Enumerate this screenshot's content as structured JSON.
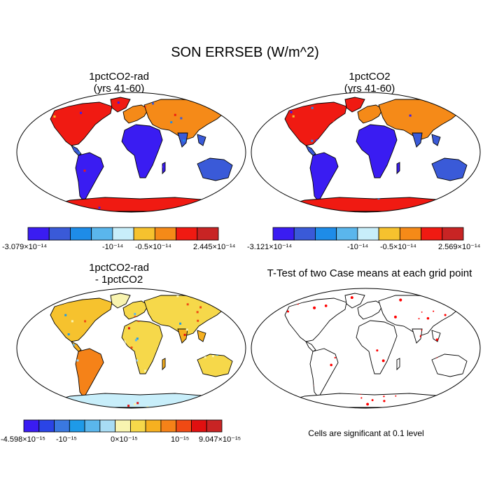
{
  "title": "SON ERRSEB (W/m^2)",
  "panels": [
    {
      "title_line1": "1pctCO2-rad",
      "title_line2": "(yrs 41-60)",
      "colorbar": {
        "colors": [
          "#3a1cf2",
          "#3a5ad8",
          "#1e8ce8",
          "#5ab6ec",
          "#c8eefa",
          "#f6c22e",
          "#f58a18",
          "#f01a12",
          "#c82424"
        ],
        "labels": [
          "-3.079×10⁻¹⁴",
          "-10⁻¹⁴",
          "-0.5×10⁻¹⁴",
          "2.445×10⁻¹⁴"
        ]
      }
    },
    {
      "title_line1": "1pctCO2",
      "title_line2": "(yrs 41-60)",
      "colorbar": {
        "colors": [
          "#3a1cf2",
          "#3a5ad8",
          "#1e8ce8",
          "#5ab6ec",
          "#c8eefa",
          "#f6c22e",
          "#f58a18",
          "#f01a12",
          "#c82424"
        ],
        "labels": [
          "-3.121×10⁻¹⁴",
          "-10⁻¹⁴",
          "-0.5×10⁻¹⁴",
          "2.569×10⁻¹⁴"
        ]
      }
    },
    {
      "title_line1": "1pctCO2-rad",
      "title_line2": "- 1pctCO2",
      "colorbar": {
        "colors": [
          "#3a1cf2",
          "#2a44e6",
          "#3a78e0",
          "#1e9ae8",
          "#5ab6ec",
          "#a8dcf4",
          "#f8f4b0",
          "#f6d84a",
          "#f6b020",
          "#f58218",
          "#f04a14",
          "#e01010",
          "#c82424"
        ],
        "labels": [
          "-4.598×10⁻¹⁵",
          "-10⁻¹⁵",
          "0×10⁻¹⁵",
          "10⁻¹⁵",
          "9.047×10⁻¹⁵"
        ]
      }
    },
    {
      "title_line1": "T-Test of two Case means at each grid point",
      "note": "Cells are significant at 0.1 level"
    }
  ],
  "colors": {
    "ocean": "#ffffff",
    "coast": "#000000",
    "significant": "#ff0000"
  }
}
